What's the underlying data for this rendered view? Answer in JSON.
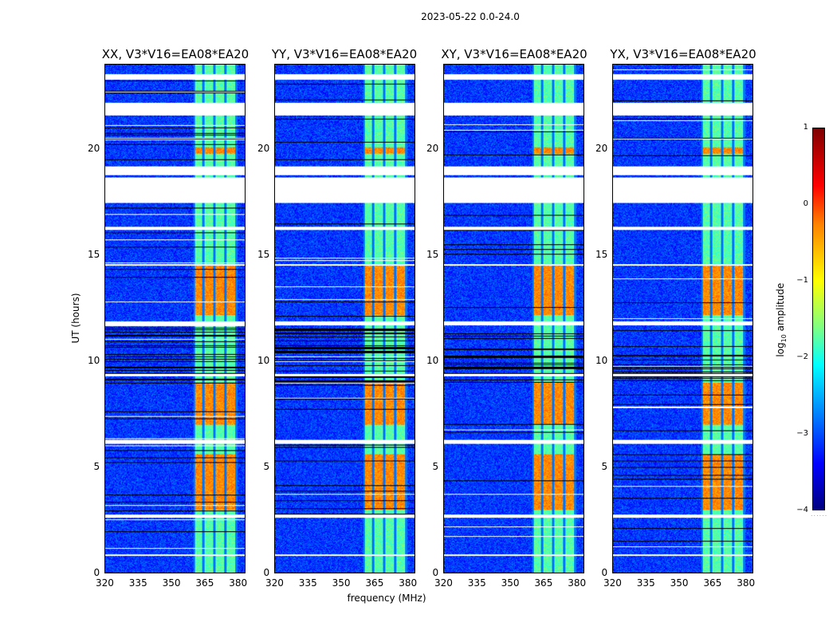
{
  "chart_data": {
    "type": "heatmap",
    "suptitle": "2023-05-22 0.0-24.0",
    "panels": [
      {
        "title": "XX, V3*V16=EA08*EA20",
        "pol": "XX"
      },
      {
        "title": "YY, V3*V16=EA08*EA20",
        "pol": "YY"
      },
      {
        "title": "XY, V3*V16=EA08*EA20",
        "pol": "XY"
      },
      {
        "title": "YX, V3*V16=EA08*EA20",
        "pol": "YX"
      }
    ],
    "xlabel": "frequency (MHz)",
    "ylabel": "UT (hours)",
    "xticks": [
      "320",
      "335",
      "350",
      "365",
      "380"
    ],
    "xtick_values": [
      320,
      335,
      350,
      365,
      380
    ],
    "xlim": [
      320,
      383.5
    ],
    "yticks": [
      "0",
      "5",
      "10",
      "15",
      "20"
    ],
    "ytick_values": [
      0,
      5,
      10,
      15,
      20
    ],
    "ylim": [
      0,
      24
    ],
    "colorbar": {
      "label": "log10 amplitude",
      "label_main": "log",
      "label_sub": "10",
      "label_rest": " amplitude",
      "ticks": [
        "1",
        "0",
        "−1",
        "−2",
        "−3",
        "−4"
      ],
      "tick_values": [
        1,
        0,
        -1,
        -2,
        -3,
        -4
      ],
      "range": [
        -4,
        1
      ],
      "colormap": "jet"
    },
    "rfi_band_mhz": [
      360,
      380
    ],
    "rfi_subband_edges_mhz": [
      360,
      364.5,
      369.5,
      374.5,
      379.5
    ],
    "white_gaps_hours": [
      [
        23.3,
        23.55
      ],
      [
        21.6,
        22.2
      ],
      [
        18.8,
        19.2
      ],
      [
        17.5,
        18.7
      ],
      [
        16.2,
        16.35
      ],
      [
        14.5,
        14.6
      ],
      [
        11.7,
        11.9
      ],
      [
        9.3,
        9.4
      ],
      [
        6.1,
        6.3
      ],
      [
        2.6,
        2.75
      ],
      [
        0.8,
        0.9
      ]
    ],
    "bright_periods_hours": [
      [
        19.8,
        20.1
      ],
      [
        3.0,
        5.6
      ],
      [
        7.0,
        9.0
      ],
      [
        12.2,
        14.6
      ]
    ]
  }
}
